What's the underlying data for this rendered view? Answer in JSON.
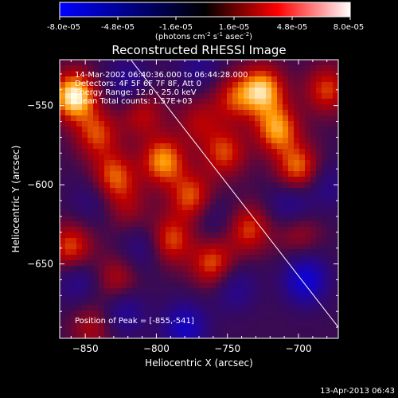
{
  "colorbar": {
    "min_label": "-8.0e-05",
    "tick_labels": [
      "-8.0e-05",
      "-4.8e-05",
      "-1.6e-05",
      "1.6e-05",
      "4.8e-05",
      "8.0e-05"
    ],
    "units_prefix": "(photons cm",
    "units_exp1": "-2",
    "units_mid": " s",
    "units_exp2": "-1",
    "units_mid2": " asec",
    "units_exp3": "-2",
    "units_suffix": ")"
  },
  "chart_data": {
    "type": "heatmap",
    "title": "Reconstructed RHESSI Image",
    "xlabel": "Heliocentric X (arcsec)",
    "ylabel": "Heliocentric Y (arcsec)",
    "xlim": [
      -868,
      -672
    ],
    "ylim": [
      -697,
      -521
    ],
    "x_ticks": [
      -850,
      -800,
      -750,
      -700
    ],
    "y_ticks": [
      -550,
      -600,
      -650
    ],
    "zlim": [
      -8e-05,
      8e-05
    ],
    "annotations": [
      "14-Mar-2002 06:40:36.000 to 06:44:28.000",
      "Detectors: 4F 5F 6F 7F 8F, Att 0",
      "Energy Range: 12.0 - 25.0 keV",
      "Clean    Total counts: 1.57E+03"
    ],
    "peak_label": "Position of Peak = [-855,-541]",
    "peak": [
      -855,
      -541
    ],
    "limb_line": {
      "start": [
        -818,
        -521
      ],
      "end": [
        -672,
        -690
      ]
    },
    "hot_spots": [
      {
        "x": -858,
        "y": -544,
        "v": 8e-05
      },
      {
        "x": -842,
        "y": -568,
        "v": 4.5e-05
      },
      {
        "x": -830,
        "y": -595,
        "v": 5e-05
      },
      {
        "x": -795,
        "y": -585,
        "v": 6e-05
      },
      {
        "x": -775,
        "y": -608,
        "v": 5e-05
      },
      {
        "x": -790,
        "y": -635,
        "v": 4.8e-05
      },
      {
        "x": -752,
        "y": -580,
        "v": 4.5e-05
      },
      {
        "x": -745,
        "y": -545,
        "v": 4e-05
      },
      {
        "x": -725,
        "y": -540,
        "v": 6.5e-05
      },
      {
        "x": -715,
        "y": -565,
        "v": 6e-05
      },
      {
        "x": -700,
        "y": -590,
        "v": 5.5e-05
      },
      {
        "x": -680,
        "y": -540,
        "v": 4.5e-05
      },
      {
        "x": -860,
        "y": -640,
        "v": 5e-05
      },
      {
        "x": -828,
        "y": -660,
        "v": 3.5e-05
      },
      {
        "x": -760,
        "y": -650,
        "v": 5e-05
      },
      {
        "x": -735,
        "y": -628,
        "v": 4.5e-05
      },
      {
        "x": -700,
        "y": -630,
        "v": 3e-05
      },
      {
        "x": -810,
        "y": -555,
        "v": 3.5e-05
      },
      {
        "x": -770,
        "y": -560,
        "v": 3e-05
      },
      {
        "x": -845,
        "y": -690,
        "v": 3e-05
      },
      {
        "x": -820,
        "y": -615,
        "v": 2.5e-05
      }
    ],
    "cold_spots": [
      {
        "x": -780,
        "y": -690,
        "v": -5e-05
      },
      {
        "x": -695,
        "y": -660,
        "v": -6e-05
      },
      {
        "x": -823,
        "y": -680,
        "v": -3.5e-05
      },
      {
        "x": -705,
        "y": -613,
        "v": -3.5e-05
      },
      {
        "x": -855,
        "y": -660,
        "v": -3e-05
      },
      {
        "x": -820,
        "y": -535,
        "v": -3e-05
      },
      {
        "x": -770,
        "y": -525,
        "v": -2.5e-05
      },
      {
        "x": -745,
        "y": -665,
        "v": -3e-05
      },
      {
        "x": -810,
        "y": -640,
        "v": -2.5e-05
      },
      {
        "x": -760,
        "y": -620,
        "v": -2e-05
      },
      {
        "x": -680,
        "y": -600,
        "v": -2.5e-05
      },
      {
        "x": -845,
        "y": -610,
        "v": -2e-05
      }
    ]
  },
  "timestamp": "13-Apr-2013 06:43"
}
